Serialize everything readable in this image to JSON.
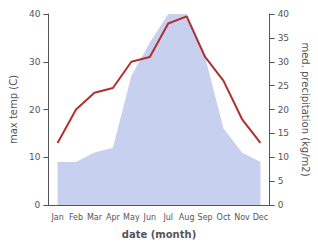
{
  "chart_data": {
    "type": "line",
    "xlabel": "date (month)",
    "ylabel": "max temp (C)",
    "y2label": "med. precipitation (kg/m2)",
    "categories": [
      "Jan",
      "Feb",
      "Mar",
      "Apr",
      "May",
      "Jun",
      "Jul",
      "Aug",
      "Sep",
      "Oct",
      "Nov",
      "Dec"
    ],
    "series": [
      {
        "type": "area",
        "axis": "y2",
        "color": "#c8d0f0",
        "values": [
          9,
          9,
          11,
          12,
          27,
          34,
          40,
          40,
          31,
          16,
          11,
          9
        ]
      },
      {
        "type": "line",
        "color": "#b03030",
        "values": [
          13,
          20,
          23.5,
          24.5,
          30,
          31,
          38,
          39.5,
          31,
          26,
          18,
          13
        ]
      }
    ],
    "ylim": [
      0,
      40
    ],
    "yticks": [
      0,
      10,
      20,
      30,
      40
    ],
    "y2lim": [
      0,
      40
    ],
    "y2ticks": [
      0,
      5,
      10,
      15,
      20,
      25,
      30,
      35,
      40
    ],
    "grid": false
  }
}
